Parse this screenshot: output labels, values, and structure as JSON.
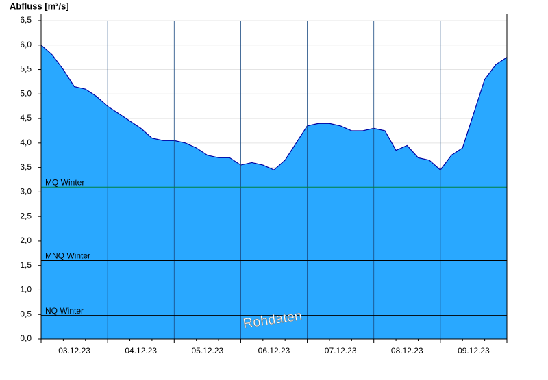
{
  "chart_data": {
    "type": "area",
    "y_label": "Abfluss [m³/s]",
    "categories": [
      null,
      null,
      null,
      "03.12.23",
      null,
      null,
      null,
      null,
      null,
      "04.12.23",
      null,
      null,
      null,
      null,
      null,
      "05.12.23",
      null,
      null,
      null,
      null,
      null,
      "06.12.23",
      null,
      null,
      null,
      null,
      null,
      "07.12.23",
      null,
      null,
      null,
      null,
      null,
      "08.12.23",
      null,
      null,
      null,
      null,
      null,
      "09.12.23",
      null,
      null,
      null
    ],
    "series": [
      {
        "name": "Rohdaten",
        "color": "#29a8ff",
        "line_color": "#0000a0",
        "values": [
          6.0,
          5.8,
          5.5,
          5.15,
          5.1,
          4.95,
          4.75,
          4.6,
          4.45,
          4.3,
          4.1,
          4.05,
          4.05,
          4.0,
          3.9,
          3.75,
          3.7,
          3.7,
          3.55,
          3.6,
          3.55,
          3.45,
          3.65,
          4.0,
          4.35,
          4.4,
          4.4,
          4.35,
          4.25,
          4.25,
          4.3,
          4.25,
          3.85,
          3.95,
          3.7,
          3.65,
          3.45,
          3.75,
          3.9,
          4.6,
          5.3,
          5.6,
          5.75
        ]
      }
    ],
    "reference_lines": [
      {
        "label": "MQ Winter",
        "value": 3.1,
        "color": "#008040"
      },
      {
        "label": "MNQ Winter",
        "value": 1.6,
        "color": "#000000"
      },
      {
        "label": "NQ Winter",
        "value": 0.48,
        "color": "#000000"
      }
    ],
    "ylim": [
      0,
      6.5
    ],
    "yticks": [
      {
        "value": 0,
        "label": "0,0"
      },
      {
        "value": 0.5,
        "label": "0,5"
      },
      {
        "value": 1,
        "label": "1,0"
      },
      {
        "value": 1.5,
        "label": "1,5"
      },
      {
        "value": 2,
        "label": "2,0"
      },
      {
        "value": 2.5,
        "label": "2,5"
      },
      {
        "value": 3,
        "label": "3,0"
      },
      {
        "value": 3.5,
        "label": "3,5"
      },
      {
        "value": 4,
        "label": "4,0"
      },
      {
        "value": 4.5,
        "label": "4,5"
      },
      {
        "value": 5,
        "label": "5,0"
      },
      {
        "value": 5.5,
        "label": "5,5"
      },
      {
        "value": 6,
        "label": "6,0"
      },
      {
        "value": 6.5,
        "label": "6,5"
      }
    ],
    "grid": true
  }
}
